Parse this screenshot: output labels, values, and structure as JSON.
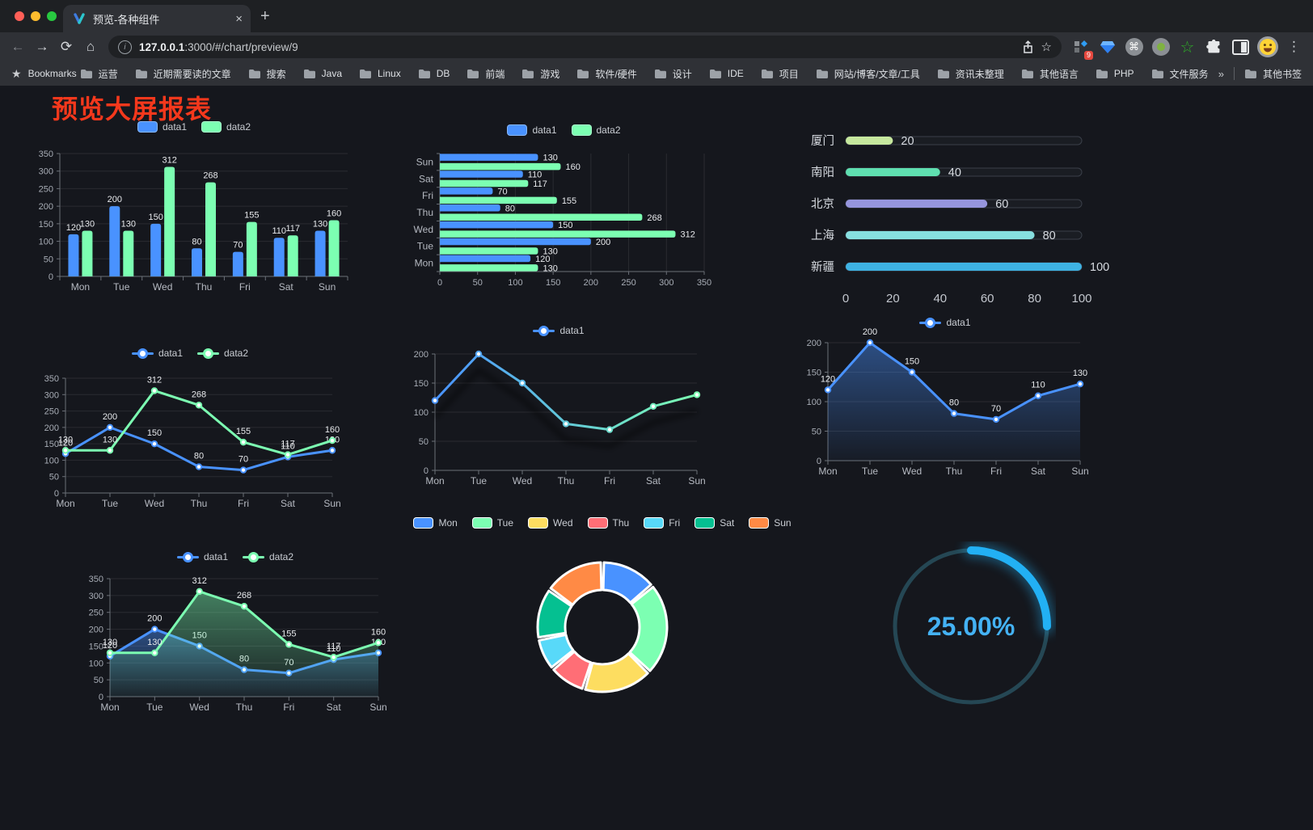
{
  "browser": {
    "tab": {
      "title": "预览-各种组件"
    },
    "url": {
      "host": "127.0.0.1",
      "rest": ":3000/#/chart/preview/9"
    },
    "icons": {
      "back": "←",
      "forward": "→",
      "reload": "⟳",
      "home": "⌂",
      "info": "i",
      "star": "☆",
      "menu": "⋮",
      "close": "×",
      "newtab": "+",
      "bookmarks_star": "★",
      "chevron": "»",
      "cmd": "⌘"
    },
    "extensions_badge": "9",
    "bookmarks_label": "Bookmarks",
    "bookmarks": [
      "运营",
      "近期需要读的文章",
      "搜索",
      "Java",
      "Linux",
      "DB",
      "前端",
      "游戏",
      "软件/硬件",
      "设计",
      "IDE",
      "项目",
      "网站/博客/文章/工具",
      "资讯未整理",
      "其他语言",
      "PHP",
      "文件服务器"
    ],
    "bookmarks_overflow": "»",
    "other_bookmarks": "其他书签"
  },
  "page": {
    "title": "预览大屏报表",
    "title_color": "#f5381c",
    "background": "#15171d"
  },
  "chart_data": [
    {
      "id": "grouped-bar",
      "type": "bar",
      "legend_position": "top",
      "grid": true,
      "categories": [
        "Mon",
        "Tue",
        "Wed",
        "Thu",
        "Fri",
        "Sat",
        "Sun"
      ],
      "series": [
        {
          "name": "data1",
          "color": "#4992ff",
          "values": [
            120,
            200,
            150,
            80,
            70,
            110,
            130
          ]
        },
        {
          "name": "data2",
          "color": "#7cffb2",
          "values": [
            130,
            130,
            312,
            268,
            155,
            117,
            160
          ]
        }
      ],
      "ylim": [
        0,
        350
      ],
      "ytick": 50,
      "value_labels": true
    },
    {
      "id": "grouped-hbar",
      "type": "hbar",
      "legend_position": "top",
      "grid": true,
      "categories": [
        "Mon",
        "Tue",
        "Wed",
        "Thu",
        "Fri",
        "Sat",
        "Sun"
      ],
      "series": [
        {
          "name": "data1",
          "color": "#4992ff",
          "values": [
            120,
            200,
            150,
            80,
            70,
            110,
            130
          ]
        },
        {
          "name": "data2",
          "color": "#7cffb2",
          "values": [
            130,
            130,
            312,
            268,
            155,
            117,
            160
          ]
        }
      ],
      "xlim": [
        0,
        350
      ],
      "xtick": 50,
      "value_labels": true
    },
    {
      "id": "city-progress",
      "type": "progress",
      "rows": [
        {
          "label": "厦门",
          "value": 20,
          "color": "#c6e89e"
        },
        {
          "label": "南阳",
          "value": 40,
          "color": "#5fdfb0"
        },
        {
          "label": "北京",
          "value": 60,
          "color": "#9695dd"
        },
        {
          "label": "上海",
          "value": 80,
          "color": "#87dfe0"
        },
        {
          "label": "新疆",
          "value": 100,
          "color": "#3eb2e3"
        }
      ],
      "xlim": [
        0,
        100
      ],
      "xticks": [
        0,
        20,
        40,
        60,
        80,
        100
      ]
    },
    {
      "id": "two-line",
      "type": "line",
      "legend_position": "top",
      "grid": true,
      "categories": [
        "Mon",
        "Tue",
        "Wed",
        "Thu",
        "Fri",
        "Sat",
        "Sun"
      ],
      "series": [
        {
          "name": "data1",
          "color": "#4992ff",
          "values": [
            120,
            200,
            150,
            80,
            70,
            110,
            130
          ]
        },
        {
          "name": "data2",
          "color": "#7cffb2",
          "values": [
            130,
            130,
            312,
            268,
            155,
            117,
            160
          ]
        }
      ],
      "ylim": [
        0,
        350
      ],
      "ytick": 50,
      "value_labels": true
    },
    {
      "id": "gradient-line",
      "type": "line",
      "legend_position": "top",
      "grid": true,
      "shadow": true,
      "categories": [
        "Mon",
        "Tue",
        "Wed",
        "Thu",
        "Fri",
        "Sat",
        "Sun"
      ],
      "series": [
        {
          "name": "data1",
          "gradient": [
            "#4992ff",
            "#7cffb2"
          ],
          "values": [
            120,
            200,
            150,
            80,
            70,
            110,
            130
          ]
        }
      ],
      "ylim": [
        0,
        200
      ],
      "ytick": 50,
      "value_labels": false
    },
    {
      "id": "blue-area-line",
      "type": "line",
      "legend_position": "top",
      "grid": true,
      "categories": [
        "Mon",
        "Tue",
        "Wed",
        "Thu",
        "Fri",
        "Sat",
        "Sun"
      ],
      "series": [
        {
          "name": "data1",
          "color": "#4992ff",
          "area": true,
          "values": [
            120,
            200,
            150,
            80,
            70,
            110,
            130
          ]
        }
      ],
      "ylim": [
        0,
        200
      ],
      "ytick": 50,
      "value_labels": true
    },
    {
      "id": "two-area-line",
      "type": "line",
      "legend_position": "top",
      "grid": true,
      "categories": [
        "Mon",
        "Tue",
        "Wed",
        "Thu",
        "Fri",
        "Sat",
        "Sun"
      ],
      "series": [
        {
          "name": "data1",
          "color": "#4992ff",
          "area": true,
          "values": [
            120,
            200,
            150,
            80,
            70,
            110,
            130
          ]
        },
        {
          "name": "data2",
          "color": "#7cffb2",
          "area": true,
          "values": [
            130,
            130,
            312,
            268,
            155,
            117,
            160
          ]
        }
      ],
      "ylim": [
        0,
        350
      ],
      "ytick": 50,
      "value_labels": true
    },
    {
      "id": "week-donut",
      "type": "pie",
      "legend_position": "top",
      "categories": [
        "Mon",
        "Tue",
        "Wed",
        "Thu",
        "Fri",
        "Sat",
        "Sun"
      ],
      "values": [
        120,
        200,
        150,
        80,
        70,
        110,
        130
      ],
      "colors": [
        "#4992ff",
        "#7cffb2",
        "#fddd60",
        "#ff6e76",
        "#58d9f9",
        "#05c091",
        "#ff8a45"
      ],
      "inner_radius_ratio": 0.57
    },
    {
      "id": "percent-gauge",
      "type": "gauge",
      "label": "25.00%",
      "percent": 25,
      "color": "#22b0f4",
      "track_color": "#254754",
      "text_color": "#44b2f4"
    }
  ]
}
